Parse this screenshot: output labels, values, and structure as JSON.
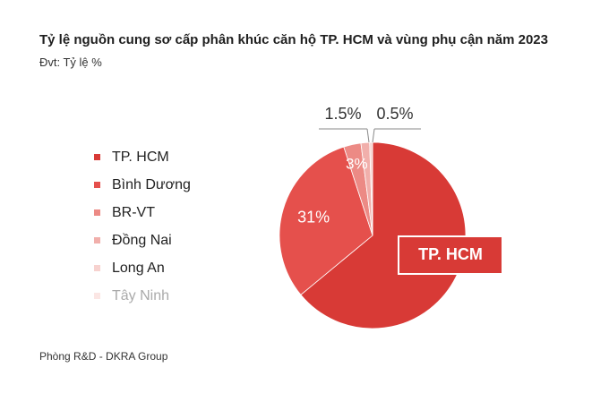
{
  "header": {
    "title": "Tỷ lệ nguồn cung sơ cấp phân khúc căn hộ TP. HCM và vùng phụ cận năm 2023",
    "unit": "Đvt: Tỷ lệ %"
  },
  "footer": {
    "source": "Phòng R&D - DKRA Group"
  },
  "callout": {
    "label": "TP. HCM"
  },
  "chart_data": {
    "type": "pie",
    "title": "Tỷ lệ nguồn cung sơ cấp phân khúc căn hộ TP. HCM và vùng phụ cận năm 2023",
    "unit": "Đvt: Tỷ lệ %",
    "legend_position": "left",
    "categories": [
      "TP. HCM",
      "Bình Dương",
      "BR-VT",
      "Đồng Nai",
      "Long An",
      "Tây Ninh"
    ],
    "values": [
      64,
      31,
      3,
      1.5,
      0.5,
      0
    ],
    "labels": [
      "64%",
      "31%",
      "3%",
      "1.5%",
      "0.5%",
      ""
    ],
    "colors": [
      "#d83a36",
      "#e5504c",
      "#ec8a85",
      "#f1afab",
      "#f7d2cf",
      "#fbe6e4"
    ],
    "label_colors": [
      "#ffffff",
      "#ffffff",
      "#ffffff",
      "#333333",
      "#333333",
      "#333333"
    ],
    "legend_text_colors": [
      "#222222",
      "#222222",
      "#222222",
      "#222222",
      "#222222",
      "#aaaaaa"
    ]
  }
}
